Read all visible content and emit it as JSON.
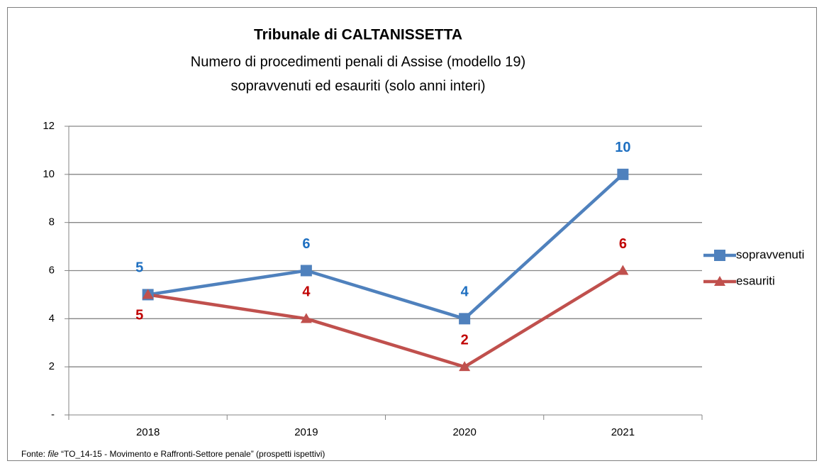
{
  "chart_data": {
    "type": "line",
    "title": "Tribunale di CALTANISSETTA",
    "subtitle": [
      "Numero di procedimenti penali di Assise (modello 19)",
      "sopravvenuti ed esauriti (solo anni interi)"
    ],
    "categories": [
      "2018",
      "2019",
      "2020",
      "2021"
    ],
    "series": [
      {
        "name": "sopravvenuti",
        "color": "#4f81bd",
        "label_color": "#1f70c1",
        "marker": "square",
        "values": [
          5,
          6,
          4,
          10
        ]
      },
      {
        "name": "esauriti",
        "color": "#c0504d",
        "label_color": "#c00000",
        "marker": "triangle",
        "values": [
          5,
          4,
          2,
          6
        ]
      }
    ],
    "ylim": [
      0,
      12
    ],
    "yticks": [
      {
        "value": 0,
        "label": "-"
      },
      2,
      4,
      6,
      8,
      10,
      12
    ],
    "grid": true,
    "legend": "right",
    "source": {
      "prefix": "Fonte: ",
      "italic": "file",
      "rest": " “TO_14-15 - Movimento e Raffronti-Settore penale” (prospetti ispettivi)"
    }
  }
}
